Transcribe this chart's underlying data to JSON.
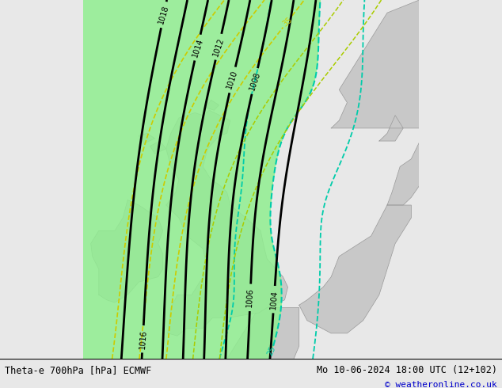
{
  "title_left": "Theta-e 700hPa [hPa] ECMWF",
  "title_right": "Mo 10-06-2024 18:00 UTC (12+102)",
  "credit": "© weatheronline.co.uk",
  "sea_color": "#e8e8e8",
  "land_color": "#c8c8c8",
  "green_fill_color": "#90ee90",
  "black_contour_color": "#000000",
  "cyan_contour_color": "#00ccaa",
  "yellow_contour_color": "#cccc00",
  "yellowgreen_contour_color": "#aacc00",
  "figsize": [
    6.34,
    4.9
  ],
  "dpi": 100
}
